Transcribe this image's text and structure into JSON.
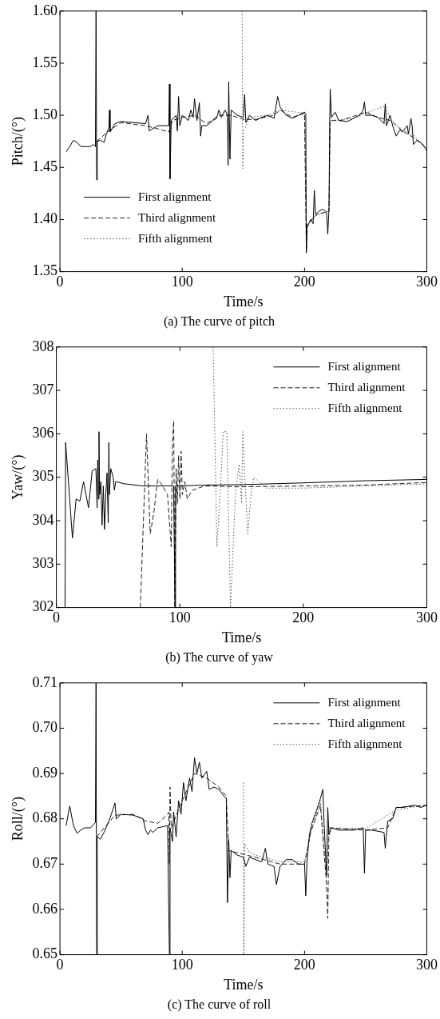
{
  "chart_data": [
    {
      "type": "line",
      "title": "(a) The curve of pitch",
      "xlabel": "Time/s",
      "ylabel": "Pitch/(°)",
      "xlim": [
        0,
        300
      ],
      "xticks": [
        0,
        100,
        200,
        300
      ],
      "ylim": [
        1.35,
        1.6
      ],
      "yticks": [
        {
          "value": 1.35,
          "label": "1.35"
        },
        {
          "value": 1.4,
          "label": "1.40"
        },
        {
          "value": 1.45,
          "label": "1.45"
        },
        {
          "value": 1.5,
          "label": "1.50"
        },
        {
          "value": 1.55,
          "label": "1.55"
        },
        {
          "value": 1.6,
          "label": "1.60"
        }
      ],
      "grid": false,
      "legend": "bottom left",
      "series": [
        {
          "name": "First alignment",
          "color": "#000000",
          "line_style": "solid",
          "x": [
            5,
            8,
            11,
            14,
            17,
            21,
            25,
            27,
            29,
            29.5,
            30,
            30.5,
            33,
            36,
            38,
            40,
            40.5,
            41,
            45,
            50,
            60,
            70,
            72,
            73,
            80,
            89,
            89.5,
            90,
            91,
            95,
            96,
            97,
            98,
            100,
            105,
            107,
            109,
            110,
            112,
            114,
            115,
            116,
            120,
            125,
            128,
            130,
            132,
            135,
            137,
            137.5,
            138,
            139,
            140,
            145,
            150,
            151,
            152,
            155,
            160,
            165,
            170,
            175,
            178,
            180,
            185,
            190,
            195,
            200,
            201,
            201.5,
            202,
            205,
            207,
            208,
            209,
            212,
            215,
            218,
            219,
            220,
            220.5,
            221,
            222,
            225,
            228,
            235,
            240,
            245,
            248,
            249,
            250,
            255,
            260,
            265,
            266,
            267,
            270,
            272,
            275,
            278,
            280,
            284,
            285,
            287,
            288,
            289,
            292,
            296,
            300
          ],
          "values": [
            1.465,
            1.47,
            1.476,
            1.474,
            1.47,
            1.47,
            1.47,
            1.472,
            1.47,
            1.6,
            1.438,
            1.475,
            1.476,
            1.474,
            1.482,
            1.488,
            1.505,
            1.484,
            1.492,
            1.494,
            1.493,
            1.492,
            1.5,
            1.485,
            1.49,
            1.49,
            1.53,
            1.439,
            1.495,
            1.5,
            1.485,
            1.518,
            1.49,
            1.5,
            1.495,
            1.505,
            1.498,
            1.516,
            1.495,
            1.512,
            1.48,
            1.49,
            1.49,
            1.495,
            1.497,
            1.505,
            1.498,
            1.505,
            1.5,
            1.452,
            1.532,
            1.458,
            1.505,
            1.5,
            1.498,
            1.52,
            1.493,
            1.5,
            1.495,
            1.498,
            1.5,
            1.497,
            1.518,
            1.508,
            1.5,
            1.497,
            1.5,
            1.503,
            1.501,
            1.368,
            1.392,
            1.4,
            1.396,
            1.428,
            1.405,
            1.408,
            1.41,
            1.407,
            1.386,
            1.41,
            1.485,
            1.525,
            1.498,
            1.503,
            1.495,
            1.494,
            1.497,
            1.5,
            1.505,
            1.513,
            1.5,
            1.5,
            1.498,
            1.492,
            1.511,
            1.49,
            1.5,
            1.49,
            1.48,
            1.486,
            1.484,
            1.49,
            1.482,
            1.497,
            1.49,
            1.472,
            1.476,
            1.473,
            1.466
          ]
        },
        {
          "name": "Third alignment",
          "color": "#222222",
          "line_style": "dashed",
          "x": [
            30,
            40,
            50,
            70,
            80,
            89,
            92,
            100,
            110,
            120,
            130,
            138,
            140,
            150,
            160,
            175,
            180,
            190,
            200,
            201.5,
            202,
            210,
            220,
            221,
            230,
            250,
            260,
            270,
            280,
            290,
            300
          ],
          "values": [
            1.475,
            1.485,
            1.493,
            1.49,
            1.487,
            1.484,
            1.495,
            1.498,
            1.5,
            1.492,
            1.5,
            1.5,
            1.5,
            1.496,
            1.496,
            1.5,
            1.505,
            1.498,
            1.502,
            1.37,
            1.395,
            1.405,
            1.408,
            1.495,
            1.495,
            1.503,
            1.498,
            1.495,
            1.485,
            1.478,
            1.468
          ]
        },
        {
          "name": "Fifth alignment",
          "color": "#555555",
          "line_style": "dotted",
          "x": [
            149,
            149.5,
            150,
            155,
            170,
            180,
            200,
            201.5,
            202,
            210,
            220,
            221,
            240,
            250,
            266,
            270,
            280,
            290,
            300
          ],
          "values": [
            1.6,
            1.449,
            1.484,
            1.498,
            1.5,
            1.505,
            1.502,
            1.372,
            1.395,
            1.404,
            1.408,
            1.495,
            1.497,
            1.502,
            1.509,
            1.497,
            1.486,
            1.48,
            1.468
          ]
        }
      ]
    },
    {
      "type": "line",
      "title": "(b) The curve of yaw",
      "xlabel": "Time/s",
      "ylabel": "Yaw/(°)",
      "xlim": [
        0,
        300
      ],
      "xticks": [
        0,
        100,
        200,
        300
      ],
      "ylim": [
        302,
        308
      ],
      "yticks": [
        302,
        303,
        304,
        305,
        306,
        307,
        308
      ],
      "grid": false,
      "legend": "top right",
      "series": [
        {
          "name": "First alignment",
          "color": "#000000",
          "line_style": "solid",
          "x": [
            7,
            7.5,
            10,
            13,
            16,
            19,
            22,
            26,
            29,
            32,
            33,
            33.5,
            34,
            34.5,
            35,
            36,
            37,
            38,
            39,
            40,
            41,
            42,
            42.5,
            43,
            44,
            46,
            47,
            48,
            55,
            70,
            80,
            90,
            95,
            96,
            96.5,
            100,
            120,
            150,
            200,
            250,
            300
          ],
          "values": [
            302,
            305.8,
            304.8,
            303.6,
            304.5,
            304.45,
            304.9,
            304.3,
            305.15,
            305.2,
            304.3,
            305.4,
            304.5,
            306.05,
            304.6,
            304.9,
            303.9,
            304.8,
            303.8,
            304.6,
            305.1,
            303.95,
            305.8,
            304.6,
            305.2,
            305,
            304.7,
            304.9,
            304.85,
            304.8,
            304.8,
            304.8,
            304.8,
            302,
            304.8,
            304.8,
            304.82,
            304.83,
            304.87,
            304.92,
            304.95
          ]
        },
        {
          "name": "Third alignment",
          "color": "#222222",
          "line_style": "dashed",
          "x": [
            68,
            73,
            76,
            79,
            82,
            85,
            90,
            93,
            94,
            95,
            96,
            97,
            98,
            99,
            100,
            101,
            102,
            104,
            106,
            110,
            115,
            120,
            150,
            200,
            250,
            300
          ],
          "values": [
            302,
            306,
            303.7,
            304.2,
            304.95,
            304.85,
            304.6,
            303.4,
            305.8,
            306.3,
            302,
            305.2,
            304.4,
            305.5,
            304.5,
            305.6,
            304.6,
            304.9,
            304.5,
            304.7,
            304.75,
            304.8,
            304.78,
            304.8,
            304.82,
            304.88
          ]
        },
        {
          "name": "Fifth alignment",
          "color": "#555555",
          "line_style": "dotted",
          "x": [
            127,
            130,
            133,
            135,
            138,
            141,
            145,
            148,
            150,
            151,
            153,
            155,
            158,
            160,
            170,
            200,
            250,
            300
          ],
          "values": [
            308,
            303.4,
            304.8,
            306.05,
            306.05,
            302,
            304.6,
            305.3,
            304.4,
            306.05,
            304.8,
            303.7,
            304.7,
            305,
            304.75,
            304.75,
            304.8,
            304.85
          ]
        }
      ]
    },
    {
      "type": "line",
      "title": "(c) The curve of roll",
      "xlabel": "Time/s",
      "ylabel": "Roll/(°)",
      "xlim": [
        0,
        300
      ],
      "xticks": [
        0,
        100,
        200,
        300
      ],
      "ylim": [
        0.65,
        0.71
      ],
      "yticks": [
        {
          "value": 0.65,
          "label": "0.65"
        },
        {
          "value": 0.66,
          "label": "0.66"
        },
        {
          "value": 0.67,
          "label": "0.67"
        },
        {
          "value": 0.68,
          "label": "0.68"
        },
        {
          "value": 0.69,
          "label": "0.69"
        },
        {
          "value": 0.7,
          "label": "0.70"
        },
        {
          "value": 0.71,
          "label": "0.71"
        }
      ],
      "grid": false,
      "legend": "top right",
      "series": [
        {
          "name": "First alignment",
          "color": "#000000",
          "line_style": "solid",
          "x": [
            5,
            8,
            11,
            14,
            17,
            20,
            25,
            29,
            29.5,
            30,
            30.5,
            33,
            36,
            40,
            42,
            45,
            46,
            50,
            60,
            68,
            70,
            72,
            74,
            76,
            80,
            88,
            89.5,
            90,
            92,
            93,
            95,
            97,
            99,
            101,
            103,
            106,
            108,
            110,
            112,
            114,
            116,
            120,
            122,
            126,
            130,
            134,
            136,
            137,
            138,
            139,
            140,
            145,
            150,
            152,
            155,
            160,
            165,
            168,
            170,
            175,
            177,
            180,
            185,
            190,
            195,
            200,
            201,
            202,
            204,
            206,
            210,
            213,
            215,
            216,
            218,
            219,
            220,
            222,
            228,
            235,
            240,
            248,
            249,
            250,
            255,
            265,
            266,
            268,
            272,
            275,
            280,
            290,
            295,
            300
          ],
          "values": [
            0.6785,
            0.6828,
            0.6785,
            0.6768,
            0.6775,
            0.678,
            0.678,
            0.6792,
            0.71,
            0.65,
            0.676,
            0.6755,
            0.677,
            0.6795,
            0.681,
            0.6835,
            0.68,
            0.681,
            0.6808,
            0.68,
            0.6775,
            0.6765,
            0.6775,
            0.677,
            0.678,
            0.6785,
            0.65,
            0.678,
            0.675,
            0.6815,
            0.676,
            0.684,
            0.681,
            0.688,
            0.684,
            0.689,
            0.686,
            0.6935,
            0.69,
            0.6925,
            0.689,
            0.6905,
            0.6865,
            0.687,
            0.6865,
            0.685,
            0.6845,
            0.6615,
            0.6755,
            0.667,
            0.673,
            0.672,
            0.6715,
            0.6695,
            0.6715,
            0.671,
            0.6705,
            0.6735,
            0.67,
            0.6695,
            0.6655,
            0.6695,
            0.671,
            0.671,
            0.67,
            0.67,
            0.663,
            0.6705,
            0.6765,
            0.679,
            0.682,
            0.6845,
            0.6865,
            0.679,
            0.6675,
            0.6825,
            0.6765,
            0.678,
            0.6775,
            0.6775,
            0.6775,
            0.678,
            0.668,
            0.6775,
            0.6775,
            0.677,
            0.6735,
            0.6795,
            0.68,
            0.6825,
            0.6825,
            0.683,
            0.6825,
            0.683
          ]
        },
        {
          "name": "Third alignment",
          "color": "#222222",
          "line_style": "dashed",
          "x": [
            30,
            45,
            60,
            70,
            80,
            88,
            89,
            89.5,
            90,
            91,
            100,
            110,
            120,
            130,
            136,
            138,
            145,
            160,
            180,
            200,
            205,
            213,
            218,
            219,
            220,
            250,
            268,
            275,
            300
          ],
          "values": [
            0.676,
            0.6808,
            0.681,
            0.6795,
            0.679,
            0.681,
            0.6815,
            0.67,
            0.687,
            0.678,
            0.684,
            0.69,
            0.689,
            0.687,
            0.685,
            0.673,
            0.6725,
            0.6715,
            0.67,
            0.67,
            0.677,
            0.683,
            0.6655,
            0.658,
            0.678,
            0.6775,
            0.678,
            0.6825,
            0.683
          ]
        },
        {
          "name": "Fifth alignment",
          "color": "#555555",
          "line_style": "dotted",
          "x": [
            150,
            150.3,
            151,
            155,
            160,
            180,
            200,
            205,
            213,
            218,
            220,
            250,
            275,
            300
          ],
          "values": [
            0.688,
            0.65,
            0.6745,
            0.6725,
            0.672,
            0.6705,
            0.6705,
            0.677,
            0.684,
            0.667,
            0.678,
            0.6778,
            0.682,
            0.683
          ]
        }
      ]
    }
  ]
}
